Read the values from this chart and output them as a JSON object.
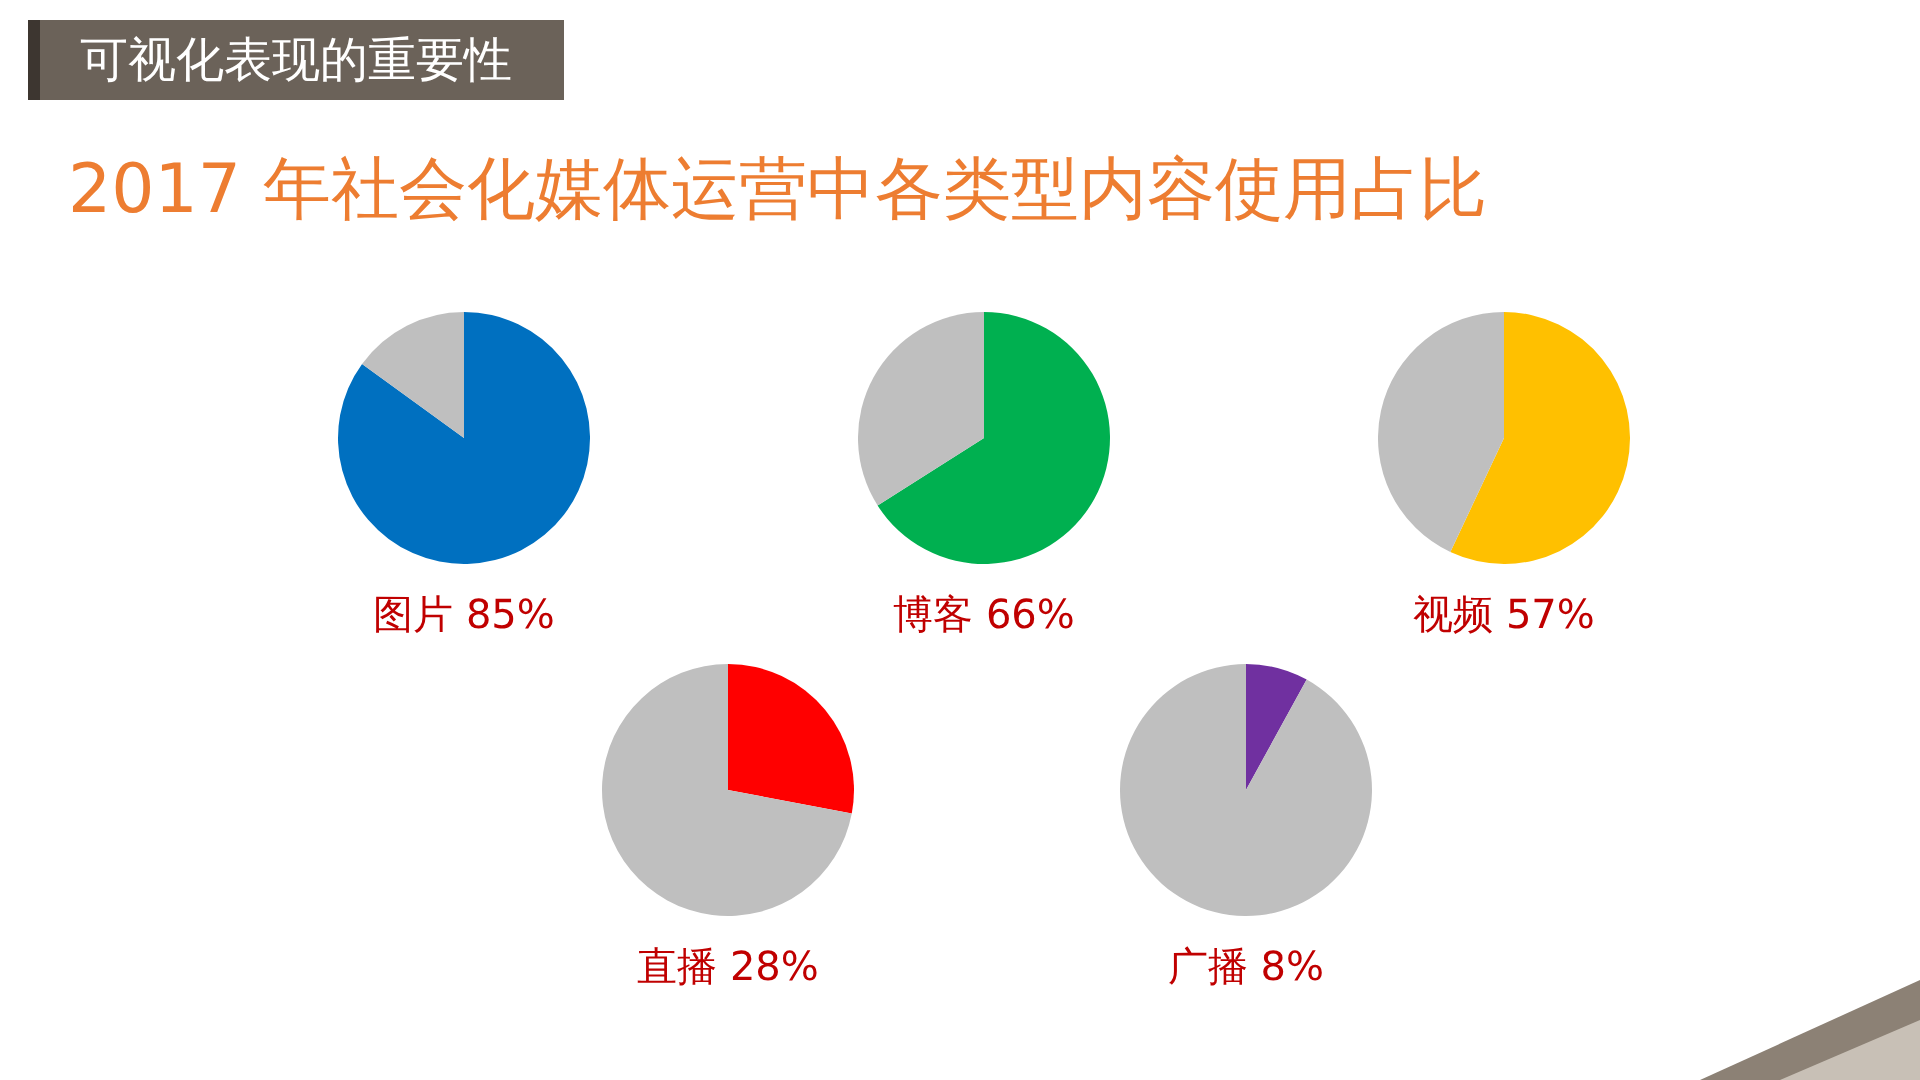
{
  "chart_data": [
    {
      "type": "other",
      "title": "2017 年社会化媒体运营中各类型内容使用占比",
      "annotations": [
        "可视化表现的重要性"
      ]
    },
    {
      "type": "pie",
      "title": "图片 85%",
      "categories": [
        null,
        null
      ],
      "values": [
        85,
        15
      ],
      "colors": [
        "#0070c0",
        "#bfbfbf"
      ]
    },
    {
      "type": "pie",
      "title": "博客 66%",
      "categories": [
        null,
        null
      ],
      "values": [
        66,
        34
      ],
      "colors": [
        "#00b050",
        "#bfbfbf"
      ]
    },
    {
      "type": "pie",
      "title": "视频 57%",
      "categories": [
        null,
        null
      ],
      "values": [
        57,
        43
      ],
      "colors": [
        "#ffc000",
        "#bfbfbf"
      ]
    },
    {
      "type": "pie",
      "title": "直播 28%",
      "categories": [
        null,
        null
      ],
      "values": [
        28,
        72
      ],
      "colors": [
        "#ff0000",
        "#bfbfbf"
      ]
    },
    {
      "type": "pie",
      "title": "广播 8%",
      "categories": [
        null,
        null
      ],
      "values": [
        8,
        92
      ],
      "colors": [
        "#7030a0",
        "#bfbfbf"
      ]
    }
  ]
}
